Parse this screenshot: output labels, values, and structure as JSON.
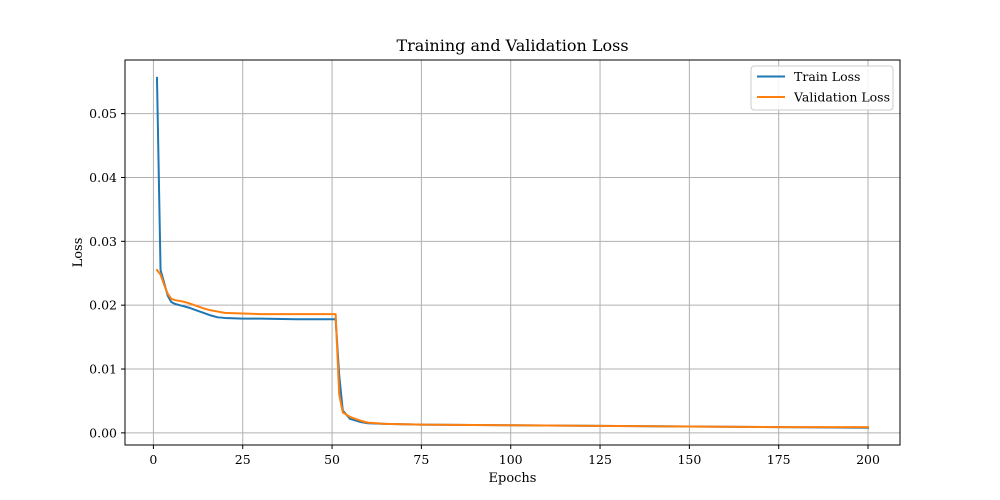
{
  "chart_data": {
    "type": "line",
    "title": "Training and Validation Loss",
    "xlabel": "Epochs",
    "ylabel": "Loss",
    "xlim": [
      -7.95,
      208.95
    ],
    "ylim": [
      -0.0019,
      0.0584
    ],
    "xticks": [
      0,
      25,
      50,
      75,
      100,
      125,
      150,
      175,
      200
    ],
    "xtick_labels": [
      "0",
      "25",
      "50",
      "75",
      "100",
      "125",
      "150",
      "175",
      "200"
    ],
    "yticks": [
      0.0,
      0.01,
      0.02,
      0.03,
      0.04,
      0.05
    ],
    "ytick_labels": [
      "0.00",
      "0.01",
      "0.02",
      "0.03",
      "0.04",
      "0.05"
    ],
    "grid": true,
    "legend_position": "top-right",
    "series": [
      {
        "name": "Train Loss",
        "color": "#1f77b4",
        "x": [
          1,
          2,
          3,
          4,
          5,
          6,
          8,
          10,
          12,
          14,
          16,
          18,
          20,
          25,
          30,
          40,
          50,
          51,
          52,
          53,
          55,
          58,
          60,
          65,
          75,
          100,
          125,
          150,
          175,
          200
        ],
        "y": [
          0.0556,
          0.0255,
          0.0235,
          0.0215,
          0.0205,
          0.0202,
          0.0199,
          0.0196,
          0.0192,
          0.0188,
          0.0184,
          0.0181,
          0.018,
          0.0179,
          0.0179,
          0.0178,
          0.0178,
          0.0178,
          0.009,
          0.0035,
          0.0022,
          0.0017,
          0.0015,
          0.0014,
          0.0013,
          0.0012,
          0.0011,
          0.001,
          0.0009,
          0.0008
        ]
      },
      {
        "name": "Validation Loss",
        "color": "#ff7f0e",
        "x": [
          1,
          2,
          3,
          4,
          5,
          6,
          8,
          10,
          12,
          14,
          16,
          18,
          20,
          25,
          30,
          40,
          50,
          51,
          52,
          53,
          55,
          58,
          60,
          65,
          75,
          100,
          125,
          150,
          175,
          200
        ],
        "y": [
          0.0255,
          0.0248,
          0.0232,
          0.0218,
          0.021,
          0.0208,
          0.0206,
          0.0203,
          0.0199,
          0.0195,
          0.0192,
          0.019,
          0.0188,
          0.0187,
          0.0186,
          0.0186,
          0.0186,
          0.0186,
          0.006,
          0.0032,
          0.0025,
          0.0019,
          0.0016,
          0.0014,
          0.0013,
          0.0012,
          0.0011,
          0.001,
          0.0009,
          0.0009
        ]
      }
    ]
  }
}
